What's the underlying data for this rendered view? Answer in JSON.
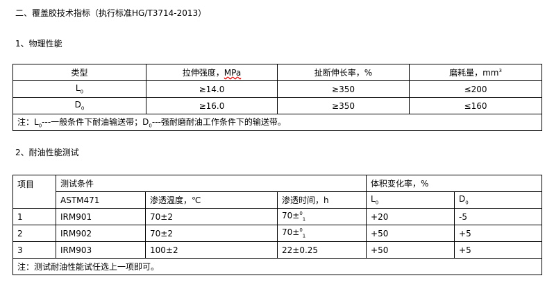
{
  "heading": "二、覆盖胶技术指标（执行标准HG/T3714-2013）",
  "section1": "1、物理性能",
  "table1": {
    "headers": [
      "类型",
      "拉伸强度，",
      "MPa",
      "扯断伸长率，%",
      "磨耗量，mm",
      "3"
    ],
    "rows": [
      {
        "type": "L",
        "sub": "0",
        "tensile": "≥14.0",
        "elong": "≥350",
        "wear": "≤200"
      },
      {
        "type": "D",
        "sub": "0",
        "tensile": "≥16.0",
        "elong": "≥350",
        "wear": "≤160"
      }
    ],
    "note_a": "注：L",
    "note_sub1": "0",
    "note_b": "---一般条件下耐油输送带；D",
    "note_sub2": "0",
    "note_c": "---强耐磨耐油工作条件下的输送带。"
  },
  "section2": "2、耐油性能测试",
  "table2": {
    "h_item": "项目",
    "h_cond": "测试条件",
    "h_vol": "体积变化率，%",
    "sub_headers": [
      "ASTM471",
      "渗透温度，℃",
      "渗透时间，h"
    ],
    "h_L": "L",
    "h_D": "D",
    "h_sub": "0",
    "rows": [
      {
        "item": "1",
        "oil": "IRM901",
        "temp": "70±2",
        "time": "70±",
        "sup": "0",
        "sub": "1",
        "L": "+20",
        "D": "-5"
      },
      {
        "item": "2",
        "oil": "IRM902",
        "temp": "70±2",
        "time": "70±",
        "sup": "0",
        "sub": "1",
        "L": "+50",
        "D": "+5"
      },
      {
        "item": "3",
        "oil": "IRM903",
        "temp": "100±2",
        "time": "22±0.25",
        "sup": "",
        "sub": "",
        "L": "+50",
        "D": "+5"
      }
    ],
    "note": "注：测试耐油性能试任选上一项即可。"
  }
}
